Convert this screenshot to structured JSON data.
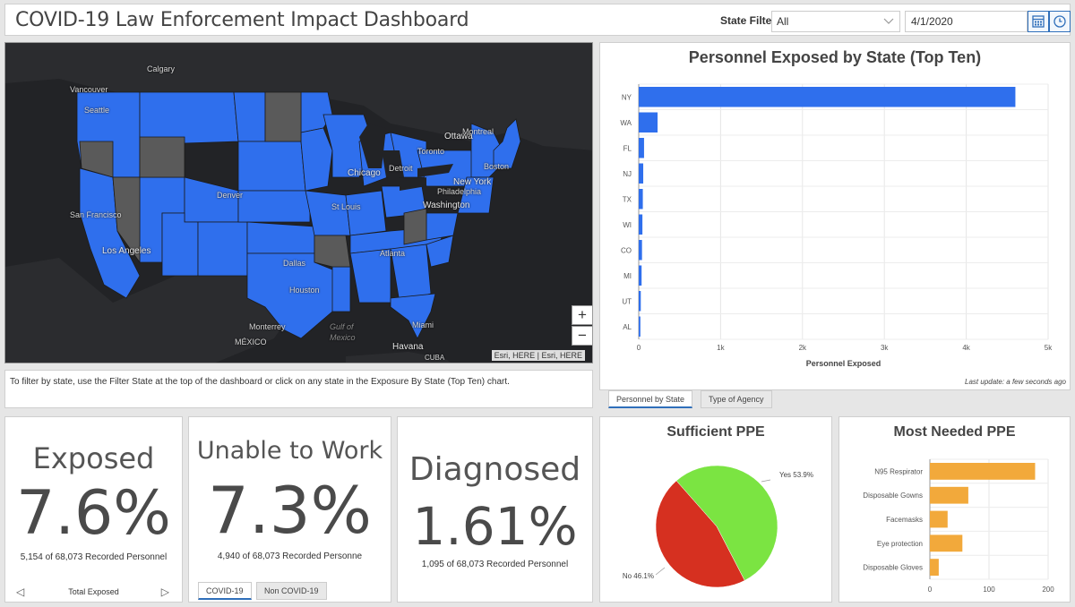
{
  "header": {
    "title": "COVID-19 Law Enforcement Impact Dashboard",
    "state_filter_label": "State Filter",
    "state_filter_value": "All",
    "date_value": "4/1/2020"
  },
  "map": {
    "labels": {
      "calgary": "Calgary",
      "vancouver": "Vancouver",
      "seattle": "Seattle",
      "ottawa": "Ottawa",
      "montreal": "Montreal",
      "toronto": "Toronto",
      "detroit": "Detroit",
      "chicago": "Chicago",
      "boston": "Boston",
      "new_york": "New York",
      "philadelphia": "Philadelphia",
      "washington": "Washington",
      "denver": "Denver",
      "st_louis": "St Louis",
      "san_francisco": "San Francisco",
      "los_angeles": "Los Angeles",
      "dallas": "Dallas",
      "atlanta": "Atlanta",
      "houston": "Houston",
      "monterrey": "Monterrey",
      "mexico": "MÉXICO",
      "gulf": "Gulf of Mexico",
      "miami": "Miami",
      "havana": "Havana",
      "cuba": "CUBA"
    },
    "zoom_in": "+",
    "zoom_out": "−",
    "attribution": "Esri, HERE | Esri, HERE",
    "colors": {
      "selected": "#2f6fed",
      "unselected": "#5a5a5a",
      "water": "#222326"
    }
  },
  "info_text": "To filter by state, use the Filter State at the top of the dashboard or click on any state in the Exposure By State (Top Ten) chart.",
  "exposed_by_state": {
    "title": "Personnel Exposed by State (Top Ten)",
    "last_update": "Last update: a few seconds ago",
    "tabs": [
      "Personnel by State",
      "Type of Agency"
    ],
    "chart_data": {
      "type": "bar",
      "orientation": "horizontal",
      "categories": [
        "NY",
        "WA",
        "FL",
        "NJ",
        "TX",
        "WI",
        "CO",
        "MI",
        "UT",
        "AL"
      ],
      "values": [
        4600,
        230,
        65,
        55,
        50,
        45,
        40,
        35,
        25,
        20
      ],
      "xlabel": "Personnel Exposed",
      "xlim": [
        0,
        5000
      ],
      "xticks": [
        "0",
        "1k",
        "2k",
        "3k",
        "4k",
        "5k"
      ],
      "color": "#2f6fed"
    }
  },
  "kpis": [
    {
      "title": "Exposed",
      "value": "7.6%",
      "sub": "5,154 of 68,073 Recorded Personnel",
      "pager_label": "Total Exposed"
    },
    {
      "title": "Unable to Work",
      "value": "7.3%",
      "sub": "4,940 of 68,073 Recorded Personne",
      "tabs": [
        "COVID-19",
        "Non COVID-19"
      ]
    },
    {
      "title": "Diagnosed",
      "value": "1.61%",
      "sub": "1,095 of 68,073 Recorded Personnel"
    }
  ],
  "sufficient_ppe": {
    "title": "Sufficient PPE",
    "chart_data": {
      "type": "pie",
      "slices": [
        {
          "label": "Yes 53.9%",
          "value": 53.9,
          "color": "#7be442"
        },
        {
          "label": "No 46.1%",
          "value": 46.1,
          "color": "#d63020"
        }
      ]
    }
  },
  "most_needed_ppe": {
    "title": "Most Needed PPE",
    "chart_data": {
      "type": "bar",
      "orientation": "horizontal",
      "categories": [
        "N95 Respirator",
        "Disposable Gowns",
        "Facemasks",
        "Eye protection",
        "Disposable Gloves"
      ],
      "values": [
        178,
        65,
        30,
        55,
        15
      ],
      "xlim": [
        0,
        200
      ],
      "xticks": [
        "0",
        "100",
        "200"
      ],
      "color": "#f2a93b"
    }
  }
}
